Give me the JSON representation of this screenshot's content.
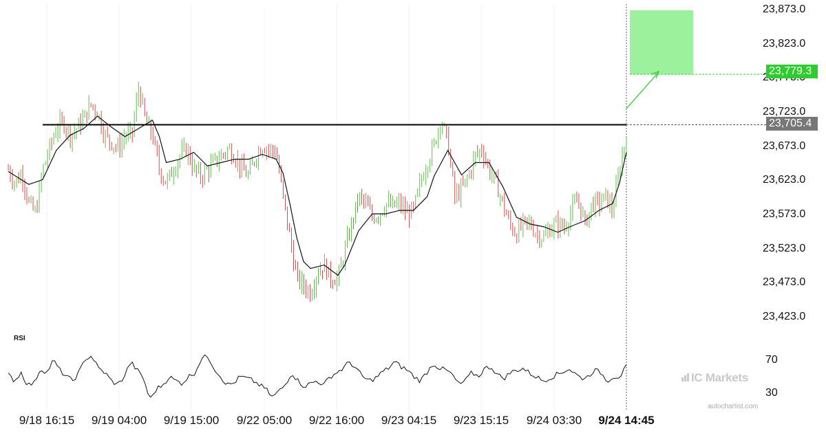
{
  "chart_data": {
    "type": "candlestick",
    "instrument_price_axis": {
      "ticks": [
        "23,873.0",
        "23,823.0",
        "23,773.0",
        "23,723.0",
        "23,673.0",
        "23,623.0",
        "23,573.0",
        "23,523.0",
        "23,473.0",
        "23,423.0"
      ],
      "ylim": [
        23405,
        23880
      ]
    },
    "x_ticks": [
      "9/18 16:15",
      "9/19 04:00",
      "9/19 15:00",
      "9/22 05:00",
      "9/22 16:00",
      "9/23 04:15",
      "9/23 15:15",
      "9/24 03:30",
      "9/24 14:45"
    ],
    "bold_x_tick": "9/24 14:45",
    "resistance_level": {
      "value": 23705.4,
      "label": "23,705.4"
    },
    "target_level": {
      "value": 23779.3,
      "label": "23,779.3"
    },
    "target_zone": {
      "from": 23779.3,
      "to": 23873.0
    },
    "price_path": [
      {
        "t": 0,
        "p": 23640
      },
      {
        "t": 2,
        "p": 23620
      },
      {
        "t": 4,
        "p": 23635
      },
      {
        "t": 6,
        "p": 23590
      },
      {
        "t": 8,
        "p": 23575
      },
      {
        "t": 10,
        "p": 23640
      },
      {
        "t": 12,
        "p": 23670
      },
      {
        "t": 14,
        "p": 23700
      },
      {
        "t": 16,
        "p": 23710
      },
      {
        "t": 18,
        "p": 23690
      },
      {
        "t": 20,
        "p": 23700
      },
      {
        "t": 22,
        "p": 23715
      },
      {
        "t": 24,
        "p": 23735
      },
      {
        "t": 26,
        "p": 23725
      },
      {
        "t": 28,
        "p": 23690
      },
      {
        "t": 30,
        "p": 23680
      },
      {
        "t": 32,
        "p": 23670
      },
      {
        "t": 34,
        "p": 23690
      },
      {
        "t": 36,
        "p": 23690
      },
      {
        "t": 38,
        "p": 23760
      },
      {
        "t": 40,
        "p": 23710
      },
      {
        "t": 42,
        "p": 23690
      },
      {
        "t": 44,
        "p": 23640
      },
      {
        "t": 46,
        "p": 23620
      },
      {
        "t": 48,
        "p": 23640
      },
      {
        "t": 50,
        "p": 23660
      },
      {
        "t": 52,
        "p": 23670
      },
      {
        "t": 54,
        "p": 23640
      },
      {
        "t": 56,
        "p": 23630
      },
      {
        "t": 58,
        "p": 23640
      },
      {
        "t": 60,
        "p": 23650
      },
      {
        "t": 62,
        "p": 23660
      },
      {
        "t": 64,
        "p": 23670
      },
      {
        "t": 66,
        "p": 23660
      },
      {
        "t": 68,
        "p": 23640
      },
      {
        "t": 70,
        "p": 23630
      },
      {
        "t": 72,
        "p": 23660
      },
      {
        "t": 74,
        "p": 23675
      },
      {
        "t": 76,
        "p": 23670
      },
      {
        "t": 78,
        "p": 23665
      },
      {
        "t": 80,
        "p": 23600
      },
      {
        "t": 82,
        "p": 23540
      },
      {
        "t": 84,
        "p": 23480
      },
      {
        "t": 86,
        "p": 23470
      },
      {
        "t": 88,
        "p": 23460
      },
      {
        "t": 90,
        "p": 23490
      },
      {
        "t": 92,
        "p": 23500
      },
      {
        "t": 94,
        "p": 23480
      },
      {
        "t": 96,
        "p": 23480
      },
      {
        "t": 98,
        "p": 23520
      },
      {
        "t": 100,
        "p": 23560
      },
      {
        "t": 102,
        "p": 23600
      },
      {
        "t": 104,
        "p": 23590
      },
      {
        "t": 106,
        "p": 23570
      },
      {
        "t": 108,
        "p": 23575
      },
      {
        "t": 110,
        "p": 23590
      },
      {
        "t": 112,
        "p": 23585
      },
      {
        "t": 114,
        "p": 23590
      },
      {
        "t": 116,
        "p": 23575
      },
      {
        "t": 118,
        "p": 23580
      },
      {
        "t": 120,
        "p": 23620
      },
      {
        "t": 122,
        "p": 23650
      },
      {
        "t": 124,
        "p": 23675
      },
      {
        "t": 126,
        "p": 23715
      },
      {
        "t": 128,
        "p": 23680
      },
      {
        "t": 130,
        "p": 23600
      },
      {
        "t": 132,
        "p": 23610
      },
      {
        "t": 134,
        "p": 23630
      },
      {
        "t": 136,
        "p": 23660
      },
      {
        "t": 138,
        "p": 23670
      },
      {
        "t": 140,
        "p": 23640
      },
      {
        "t": 142,
        "p": 23620
      },
      {
        "t": 144,
        "p": 23590
      },
      {
        "t": 146,
        "p": 23560
      },
      {
        "t": 148,
        "p": 23545
      },
      {
        "t": 150,
        "p": 23560
      },
      {
        "t": 152,
        "p": 23560
      },
      {
        "t": 154,
        "p": 23545
      },
      {
        "t": 156,
        "p": 23540
      },
      {
        "t": 158,
        "p": 23555
      },
      {
        "t": 160,
        "p": 23560
      },
      {
        "t": 162,
        "p": 23555
      },
      {
        "t": 164,
        "p": 23580
      },
      {
        "t": 166,
        "p": 23595
      },
      {
        "t": 168,
        "p": 23560
      },
      {
        "t": 170,
        "p": 23590
      },
      {
        "t": 172,
        "p": 23590
      },
      {
        "t": 174,
        "p": 23600
      },
      {
        "t": 176,
        "p": 23580
      },
      {
        "t": 178,
        "p": 23640
      },
      {
        "t": 180,
        "p": 23690
      }
    ],
    "moving_average_path": [
      {
        "t": 0,
        "p": 23637
      },
      {
        "t": 6,
        "p": 23618
      },
      {
        "t": 10,
        "p": 23625
      },
      {
        "t": 14,
        "p": 23668
      },
      {
        "t": 18,
        "p": 23690
      },
      {
        "t": 22,
        "p": 23700
      },
      {
        "t": 26,
        "p": 23718
      },
      {
        "t": 30,
        "p": 23702
      },
      {
        "t": 34,
        "p": 23688
      },
      {
        "t": 38,
        "p": 23700
      },
      {
        "t": 42,
        "p": 23712
      },
      {
        "t": 44,
        "p": 23688
      },
      {
        "t": 46,
        "p": 23650
      },
      {
        "t": 50,
        "p": 23655
      },
      {
        "t": 54,
        "p": 23665
      },
      {
        "t": 58,
        "p": 23645
      },
      {
        "t": 62,
        "p": 23650
      },
      {
        "t": 66,
        "p": 23655
      },
      {
        "t": 70,
        "p": 23655
      },
      {
        "t": 74,
        "p": 23662
      },
      {
        "t": 78,
        "p": 23655
      },
      {
        "t": 80,
        "p": 23635
      },
      {
        "t": 82,
        "p": 23590
      },
      {
        "t": 84,
        "p": 23540
      },
      {
        "t": 86,
        "p": 23505
      },
      {
        "t": 88,
        "p": 23495
      },
      {
        "t": 92,
        "p": 23500
      },
      {
        "t": 96,
        "p": 23485
      },
      {
        "t": 98,
        "p": 23500
      },
      {
        "t": 102,
        "p": 23550
      },
      {
        "t": 106,
        "p": 23575
      },
      {
        "t": 110,
        "p": 23575
      },
      {
        "t": 114,
        "p": 23580
      },
      {
        "t": 118,
        "p": 23580
      },
      {
        "t": 122,
        "p": 23600
      },
      {
        "t": 124,
        "p": 23630
      },
      {
        "t": 128,
        "p": 23668
      },
      {
        "t": 132,
        "p": 23632
      },
      {
        "t": 136,
        "p": 23650
      },
      {
        "t": 140,
        "p": 23650
      },
      {
        "t": 144,
        "p": 23615
      },
      {
        "t": 148,
        "p": 23570
      },
      {
        "t": 152,
        "p": 23560
      },
      {
        "t": 156,
        "p": 23556
      },
      {
        "t": 160,
        "p": 23548
      },
      {
        "t": 164,
        "p": 23557
      },
      {
        "t": 168,
        "p": 23565
      },
      {
        "t": 172,
        "p": 23580
      },
      {
        "t": 176,
        "p": 23590
      },
      {
        "t": 178,
        "p": 23620
      },
      {
        "t": 180,
        "p": 23665
      }
    ],
    "rsi": {
      "label": "RSI",
      "ticks": [
        "70",
        "30"
      ],
      "ylim": [
        15,
        90
      ],
      "values": [
        52,
        45,
        55,
        40,
        42,
        60,
        55,
        70,
        58,
        50,
        45,
        55,
        72,
        75,
        60,
        55,
        45,
        40,
        50,
        68,
        58,
        48,
        22,
        35,
        40,
        50,
        45,
        42,
        50,
        55,
        72,
        75,
        60,
        50,
        40,
        42,
        50,
        48,
        45,
        40,
        35,
        25,
        32,
        40,
        55,
        45,
        38,
        42,
        45,
        40,
        50,
        55,
        60,
        68,
        60,
        50,
        45,
        48,
        55,
        60,
        68,
        62,
        58,
        50,
        45,
        55,
        66,
        60,
        58,
        52,
        40,
        45,
        55,
        50,
        60,
        62,
        52,
        48,
        55,
        58,
        60,
        54,
        50,
        45,
        48,
        52,
        55,
        60,
        54,
        48,
        50,
        58,
        55,
        45,
        50,
        50,
        62
      ]
    }
  }
}
